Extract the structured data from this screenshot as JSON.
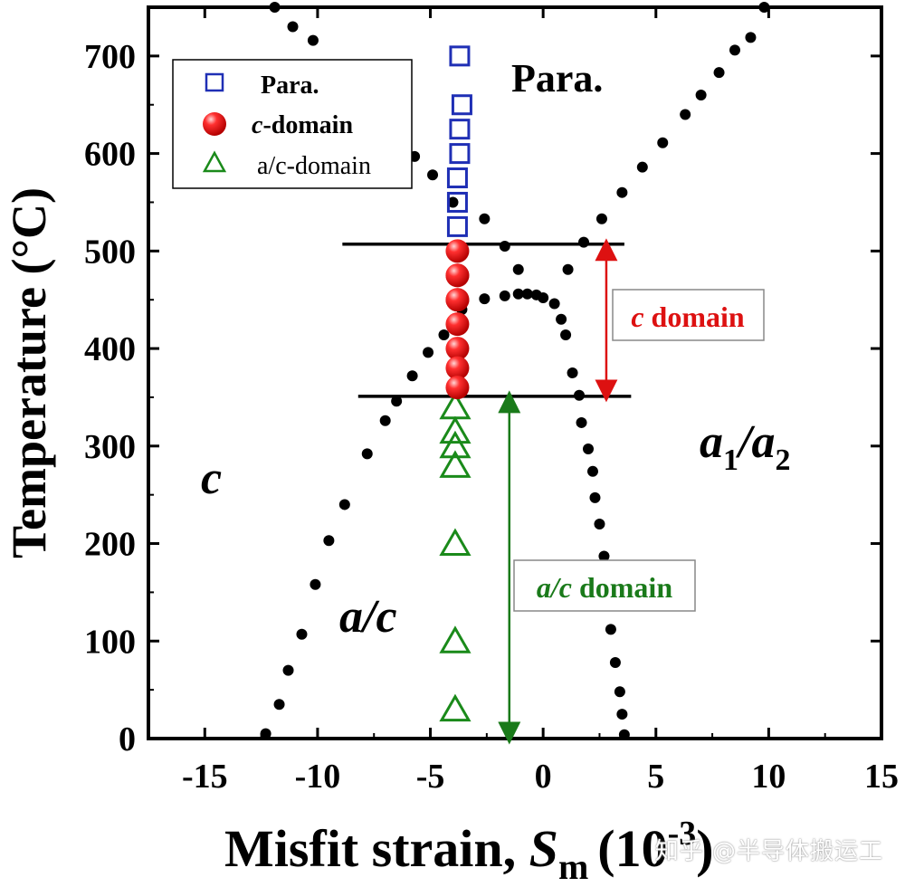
{
  "chart_data": {
    "type": "scatter",
    "title": "",
    "xlabel": "Misfit strain, ",
    "xlabel_symbol": "S",
    "xlabel_subscript": "m",
    "xlabel_unit": "(10",
    "xlabel_unit_exp": "-3",
    "xlabel_unit_close": ")",
    "ylabel": "Temperature (°C)",
    "xlim": [
      -17.5,
      15
    ],
    "ylim": [
      0,
      750
    ],
    "xticks": [
      -15,
      -10,
      -5,
      0,
      5,
      10,
      15
    ],
    "xtick_labels": [
      "-15",
      "-10",
      "-5",
      "0",
      "5",
      "10",
      "15"
    ],
    "yticks": [
      0,
      100,
      200,
      300,
      400,
      500,
      600,
      700
    ],
    "ytick_labels": [
      "0",
      "100",
      "200",
      "300",
      "400",
      "500",
      "600",
      "700"
    ],
    "grid": false,
    "legend_position": "top-left",
    "colors": {
      "para": "#1f2fb5",
      "c_domain": "#ee1111",
      "ac_domain": "#1a8a1a",
      "boundary": "#000000",
      "c_arrow": "#dd1111",
      "ac_arrow": "#1a7a1a"
    },
    "series": [
      {
        "name": "Para.",
        "marker": "open-square",
        "x": [
          -3.7,
          -3.6,
          -3.7,
          -3.7,
          -3.8,
          -3.8,
          -3.8
        ],
        "y": [
          700,
          650,
          625,
          600,
          575,
          550,
          525
        ]
      },
      {
        "name": "-domain",
        "name_italic_prefix": "c",
        "marker": "filled-circle",
        "x": [
          -3.8,
          -3.8,
          -3.8,
          -3.8,
          -3.8,
          -3.8,
          -3.8,
          -3.8,
          -3.8
        ],
        "y": [
          500,
          475,
          450,
          425,
          400,
          380,
          360,
          475,
          450
        ]
      },
      {
        "name": "a/c-domain",
        "marker": "open-triangle",
        "x": [
          -3.9,
          -3.9,
          -3.9,
          -3.9,
          -3.9,
          -3.9,
          -3.9
        ],
        "y": [
          340,
          315,
          300,
          280,
          200,
          100,
          30
        ]
      }
    ],
    "phase_boundary_points": [
      {
        "x": -12.3,
        "y": 5
      },
      {
        "x": -11.7,
        "y": 35
      },
      {
        "x": -11.3,
        "y": 70
      },
      {
        "x": -10.7,
        "y": 107
      },
      {
        "x": -10.1,
        "y": 158
      },
      {
        "x": -9.5,
        "y": 203
      },
      {
        "x": -8.8,
        "y": 240
      },
      {
        "x": -7.8,
        "y": 292
      },
      {
        "x": -7.0,
        "y": 326
      },
      {
        "x": -6.5,
        "y": 346
      },
      {
        "x": -5.8,
        "y": 372
      },
      {
        "x": -5.1,
        "y": 396
      },
      {
        "x": -4.4,
        "y": 414
      },
      {
        "x": -3.6,
        "y": 440
      },
      {
        "x": -2.6,
        "y": 451
      },
      {
        "x": -1.7,
        "y": 454
      },
      {
        "x": -1.1,
        "y": 456
      },
      {
        "x": -0.7,
        "y": 456
      },
      {
        "x": -0.3,
        "y": 455
      },
      {
        "x": 0.0,
        "y": 452
      },
      {
        "x": 0.5,
        "y": 446
      },
      {
        "x": 0.8,
        "y": 430
      },
      {
        "x": 1.0,
        "y": 414
      },
      {
        "x": 1.3,
        "y": 375
      },
      {
        "x": 1.6,
        "y": 352
      },
      {
        "x": 1.7,
        "y": 324
      },
      {
        "x": 2.0,
        "y": 297
      },
      {
        "x": 2.2,
        "y": 274
      },
      {
        "x": 2.3,
        "y": 247
      },
      {
        "x": 2.5,
        "y": 220
      },
      {
        "x": 2.7,
        "y": 187
      },
      {
        "x": 3.0,
        "y": 112
      },
      {
        "x": 3.2,
        "y": 78
      },
      {
        "x": 3.4,
        "y": 48
      },
      {
        "x": 3.5,
        "y": 25
      },
      {
        "x": 3.6,
        "y": 4
      },
      {
        "x": -1.1,
        "y": 481
      },
      {
        "x": 1.1,
        "y": 481
      },
      {
        "x": -2.6,
        "y": 533
      },
      {
        "x": -4.0,
        "y": 550
      },
      {
        "x": -4.9,
        "y": 578
      },
      {
        "x": -5.7,
        "y": 597
      },
      {
        "x": -11.1,
        "y": 730
      },
      {
        "x": -10.2,
        "y": 716
      },
      {
        "x": -11.9,
        "y": 750
      },
      {
        "x": -1.7,
        "y": 505
      },
      {
        "x": 1.8,
        "y": 509
      },
      {
        "x": 2.6,
        "y": 533
      },
      {
        "x": 3.5,
        "y": 560
      },
      {
        "x": 4.4,
        "y": 586
      },
      {
        "x": 5.3,
        "y": 611
      },
      {
        "x": 6.3,
        "y": 640
      },
      {
        "x": 7.0,
        "y": 660
      },
      {
        "x": 7.8,
        "y": 683
      },
      {
        "x": 8.5,
        "y": 706
      },
      {
        "x": 9.2,
        "y": 719
      },
      {
        "x": 9.8,
        "y": 750
      }
    ],
    "reference_lines": [
      {
        "y": 507,
        "x_from": -8.9,
        "x_to": 3.6
      },
      {
        "y": 351,
        "x_from": -8.2,
        "x_to": 3.9
      }
    ],
    "arrows": [
      {
        "label_prefix": "c",
        "label": " domain",
        "x": 2.8,
        "y_from": 507,
        "y_to": 351
      },
      {
        "label_prefix": "a/c",
        "label": " domain",
        "x": -1.5,
        "y_from": 351,
        "y_to": 0
      }
    ],
    "region_labels": {
      "para": "Para.",
      "c": "c",
      "ac": "a/c",
      "a1a2_a": "a",
      "a1a2_sub1": "1",
      "a1a2_slash": "/a",
      "a1a2_sub2": "2"
    }
  },
  "watermark": "知乎 @半导体搬运工"
}
